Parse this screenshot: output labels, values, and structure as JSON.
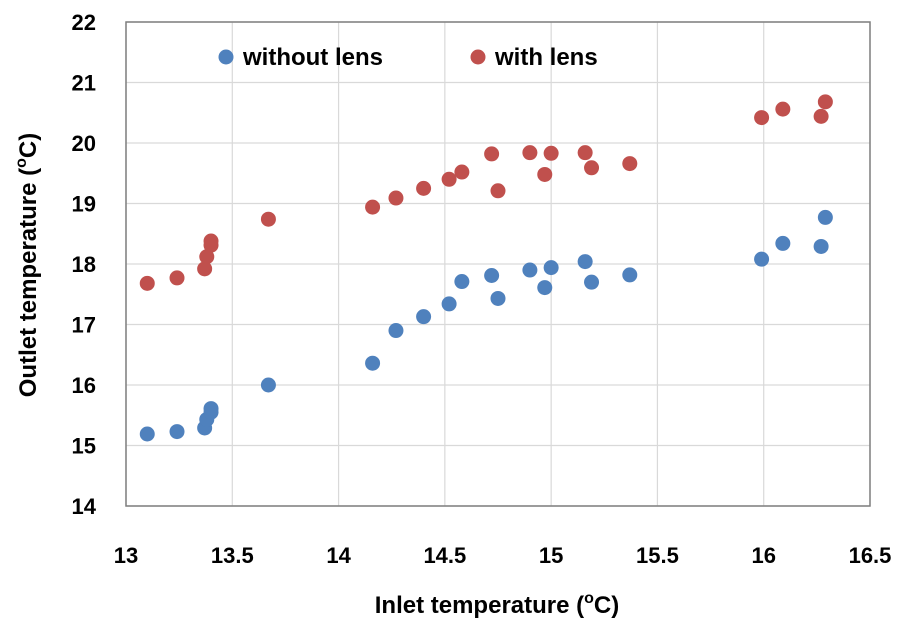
{
  "chart_data": {
    "type": "scatter",
    "title": "",
    "xlabel": "Inlet temperature (",
    "xlabel_sup": "o",
    "xlabel_end": "C)",
    "ylabel": "Outlet temperature (",
    "ylabel_sup": "o",
    "ylabel_end": "C)",
    "xlim": [
      13,
      16.5
    ],
    "ylim": [
      14,
      22
    ],
    "xticks": [
      "13",
      "13.5",
      "14",
      "14.5",
      "15",
      "15.5",
      "16",
      "16.5"
    ],
    "yticks": [
      "14",
      "15",
      "16",
      "17",
      "18",
      "19",
      "20",
      "21",
      "22"
    ],
    "grid": true,
    "legend_position": "top",
    "series": [
      {
        "name": "without lens",
        "color": "#4f81bd",
        "points": [
          [
            13.1,
            15.19
          ],
          [
            13.24,
            15.23
          ],
          [
            13.37,
            15.29
          ],
          [
            13.38,
            15.43
          ],
          [
            13.4,
            15.55
          ],
          [
            13.4,
            15.61
          ],
          [
            13.67,
            16.0
          ],
          [
            14.16,
            16.36
          ],
          [
            14.27,
            16.9
          ],
          [
            14.4,
            17.13
          ],
          [
            14.52,
            17.34
          ],
          [
            14.58,
            17.71
          ],
          [
            14.72,
            17.81
          ],
          [
            14.75,
            17.43
          ],
          [
            14.9,
            17.9
          ],
          [
            14.97,
            17.61
          ],
          [
            15.0,
            17.94
          ],
          [
            15.16,
            18.04
          ],
          [
            15.19,
            17.7
          ],
          [
            15.37,
            17.82
          ],
          [
            15.99,
            18.08
          ],
          [
            16.09,
            18.34
          ],
          [
            16.27,
            18.29
          ],
          [
            16.29,
            18.77
          ]
        ]
      },
      {
        "name": "with lens",
        "color": "#c0504d",
        "points": [
          [
            13.1,
            17.68
          ],
          [
            13.24,
            17.77
          ],
          [
            13.37,
            17.92
          ],
          [
            13.38,
            18.12
          ],
          [
            13.4,
            18.31
          ],
          [
            13.4,
            18.38
          ],
          [
            13.67,
            18.74
          ],
          [
            14.16,
            18.94
          ],
          [
            14.27,
            19.09
          ],
          [
            14.4,
            19.25
          ],
          [
            14.52,
            19.4
          ],
          [
            14.58,
            19.52
          ],
          [
            14.72,
            19.82
          ],
          [
            14.75,
            19.21
          ],
          [
            14.9,
            19.84
          ],
          [
            14.97,
            19.48
          ],
          [
            15.0,
            19.83
          ],
          [
            15.16,
            19.84
          ],
          [
            15.19,
            19.59
          ],
          [
            15.37,
            19.66
          ],
          [
            15.99,
            20.42
          ],
          [
            16.09,
            20.56
          ],
          [
            16.27,
            20.44
          ],
          [
            16.29,
            20.68
          ]
        ]
      }
    ]
  }
}
